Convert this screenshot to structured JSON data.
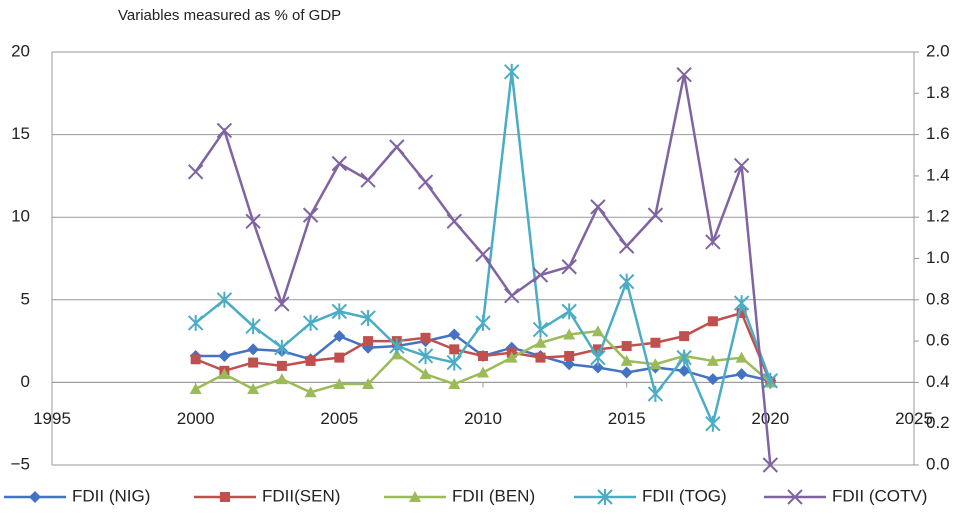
{
  "chart_data": {
    "type": "line",
    "subtitle": "Variables measured as % of GDP",
    "x": [
      2000,
      2001,
      2002,
      2003,
      2004,
      2005,
      2006,
      2007,
      2008,
      2009,
      2010,
      2011,
      2012,
      2013,
      2014,
      2015,
      2016,
      2017,
      2018,
      2019,
      2020
    ],
    "xlim": [
      1995,
      2025
    ],
    "xticks": [
      1995,
      2000,
      2005,
      2010,
      2015,
      2020,
      2025
    ],
    "ylim": [
      -5,
      20
    ],
    "yticks": [
      {
        "value": -5,
        "label": "−5"
      },
      0,
      5,
      10,
      15,
      20
    ],
    "y2lim": [
      0,
      2
    ],
    "y2ticks": [
      {
        "value": 0,
        "label": "0.0"
      },
      {
        "value": 0.2,
        "label": "0.2"
      },
      {
        "value": 0.4,
        "label": "0.4"
      },
      {
        "value": 0.6,
        "label": "0.6"
      },
      {
        "value": 0.8,
        "label": "0.8"
      },
      {
        "value": 1.0,
        "label": "1.0"
      },
      {
        "value": 1.2,
        "label": "1.2"
      },
      {
        "value": 1.4,
        "label": "1.4"
      },
      {
        "value": 1.6,
        "label": "1.6"
      },
      {
        "value": 1.8,
        "label": "1.8"
      },
      {
        "value": 2.0,
        "label": "2.0"
      }
    ],
    "grid": true,
    "legend": "bottom",
    "series": [
      {
        "name": "FDII (NIG)",
        "color": "#4472c4",
        "marker": "diamond",
        "values": [
          1.6,
          1.6,
          2.0,
          1.9,
          1.4,
          2.8,
          2.1,
          2.2,
          2.5,
          2.9,
          1.6,
          2.1,
          1.6,
          1.1,
          0.9,
          0.6,
          0.9,
          0.7,
          0.2,
          0.5,
          0.1
        ]
      },
      {
        "name": "FDII(SEN)",
        "color": "#c0504d",
        "marker": "square",
        "values": [
          1.4,
          0.7,
          1.2,
          1.0,
          1.3,
          1.5,
          2.5,
          2.5,
          2.7,
          2.0,
          1.6,
          1.8,
          1.5,
          1.6,
          2.0,
          2.2,
          2.4,
          2.8,
          3.7,
          4.2,
          0.0
        ]
      },
      {
        "name": "FDII (BEN)",
        "color": "#9bbb59",
        "marker": "triangle",
        "values": [
          -0.4,
          0.5,
          -0.4,
          0.2,
          -0.6,
          -0.1,
          -0.1,
          1.7,
          0.5,
          -0.1,
          0.6,
          1.5,
          2.4,
          2.9,
          3.1,
          1.3,
          1.1,
          1.6,
          1.3,
          1.5,
          0.0
        ]
      },
      {
        "name": "FDII (TOG)",
        "color": "#4bacc6",
        "marker": "star",
        "values": [
          3.6,
          5.0,
          3.4,
          2.1,
          3.6,
          4.3,
          3.9,
          2.2,
          1.6,
          1.2,
          3.6,
          18.8,
          3.2,
          4.3,
          1.5,
          6.1,
          -0.7,
          1.5,
          -2.5,
          4.8,
          0.1
        ]
      },
      {
        "name": "FDII (COTV)",
        "color": "#8064a2",
        "marker": "x",
        "axis": "y2",
        "values": [
          1.42,
          1.62,
          1.18,
          0.78,
          1.21,
          1.46,
          1.38,
          1.54,
          1.37,
          1.18,
          1.02,
          0.82,
          0.92,
          0.96,
          1.25,
          1.06,
          1.21,
          1.89,
          1.08,
          1.45,
          0.0
        ]
      }
    ]
  }
}
